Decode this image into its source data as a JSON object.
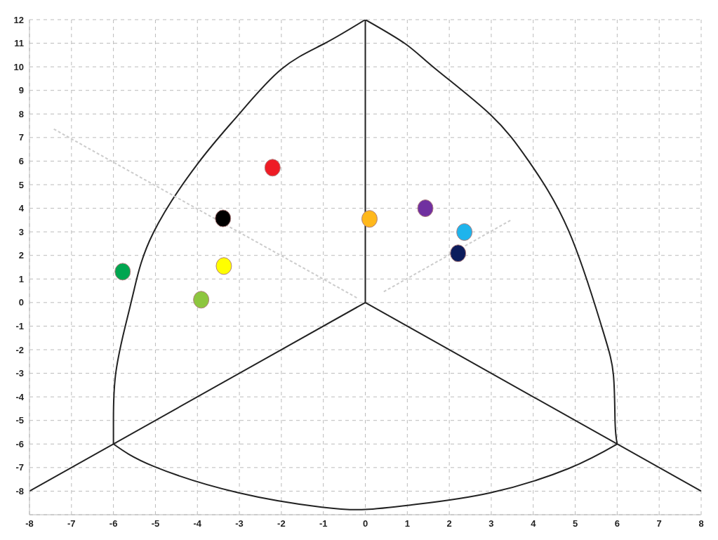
{
  "chart_data": {
    "type": "scatter",
    "marker": "circle",
    "grid": true,
    "xlim": [
      -8,
      8
    ],
    "xticks": [
      -8,
      -7,
      -6,
      -5,
      -4,
      -3,
      -2,
      -1,
      0,
      1,
      2,
      3,
      4,
      5,
      6,
      7,
      8
    ],
    "ylim": [
      -9,
      12
    ],
    "yticks": [
      {
        "value": -9,
        "label": null
      },
      -8,
      -7,
      -6,
      -5,
      -4,
      -3,
      -2,
      -1,
      0,
      1,
      2,
      3,
      4,
      5,
      6,
      7,
      8,
      9,
      10,
      11,
      12
    ],
    "series": [
      {
        "type": "line",
        "marker": "none",
        "color": "#222222",
        "line_style": "solid",
        "x": [
          0,
          -0.98,
          -2.0,
          -3.02,
          -3.98,
          -5.05,
          -5.5,
          -5.72,
          -5.95,
          -6.0,
          -6
        ],
        "values": [
          12,
          10.98,
          9.9,
          7.97,
          5.92,
          2.96,
          0.6,
          -1.02,
          -3.07,
          -5.0,
          -6
        ]
      },
      {
        "type": "line",
        "marker": "none",
        "color": "#222222",
        "line_style": "solid",
        "x": [
          0,
          0.95,
          1.68,
          2.98,
          3.88,
          4.84,
          5.63,
          5.91,
          5.95,
          6
        ],
        "values": [
          12,
          10.98,
          9.9,
          7.97,
          6.03,
          3.06,
          -1.02,
          -3.07,
          -5.1,
          -6
        ]
      },
      {
        "type": "line",
        "marker": "none",
        "color": "#222222",
        "line_style": "solid",
        "x": [
          -6,
          -5.05,
          -3.02,
          -1.04,
          0,
          1.17,
          2.98,
          4.84,
          6
        ],
        "values": [
          -6,
          -6.94,
          -8.07,
          -8.68,
          -8.78,
          -8.57,
          -8.07,
          -7.04,
          -6
        ]
      },
      {
        "type": "line",
        "marker": "none",
        "color": "#222222",
        "line_style": "solid",
        "x": [
          0,
          0
        ],
        "values": [
          0,
          12
        ]
      },
      {
        "type": "line",
        "marker": "none",
        "color": "#222222",
        "line_style": "solid",
        "x": [
          0,
          -8
        ],
        "values": [
          0,
          -8
        ]
      },
      {
        "type": "line",
        "marker": "none",
        "color": "#222222",
        "line_style": "solid",
        "x": [
          0,
          8
        ],
        "values": [
          0,
          -8
        ]
      },
      {
        "type": "line",
        "marker": "none",
        "color": "#cccccc",
        "line_style": "dashed",
        "x": [
          -7.42,
          -0.2
        ],
        "values": [
          7.36,
          0.2
        ]
      },
      {
        "type": "line",
        "marker": "none",
        "color": "#cccccc",
        "line_style": "dashed",
        "x": [
          0.44,
          3.49
        ],
        "values": [
          0.46,
          3.52
        ]
      },
      {
        "color": "#ee1c25",
        "x": [
          -2.21
        ],
        "values": [
          5.72
        ]
      },
      {
        "color": "#000000",
        "x": [
          -3.39
        ],
        "values": [
          3.57
        ]
      },
      {
        "color": "#ffff00",
        "x": [
          -3.37
        ],
        "values": [
          1.55
        ]
      },
      {
        "color": "#00a650",
        "x": [
          -5.78
        ],
        "values": [
          1.31
        ]
      },
      {
        "color": "#8dc63f",
        "x": [
          -3.91
        ],
        "values": [
          0.12
        ]
      },
      {
        "color": "#ffb81c",
        "x": [
          0.1
        ],
        "values": [
          3.55
        ]
      },
      {
        "color": "#7030a0",
        "x": [
          1.43
        ],
        "values": [
          4.0
        ]
      },
      {
        "color": "#1eb4ec",
        "x": [
          2.36
        ],
        "values": [
          2.99
        ]
      },
      {
        "color": "#0c1c5c",
        "x": [
          2.21
        ],
        "values": [
          2.09
        ]
      }
    ]
  }
}
